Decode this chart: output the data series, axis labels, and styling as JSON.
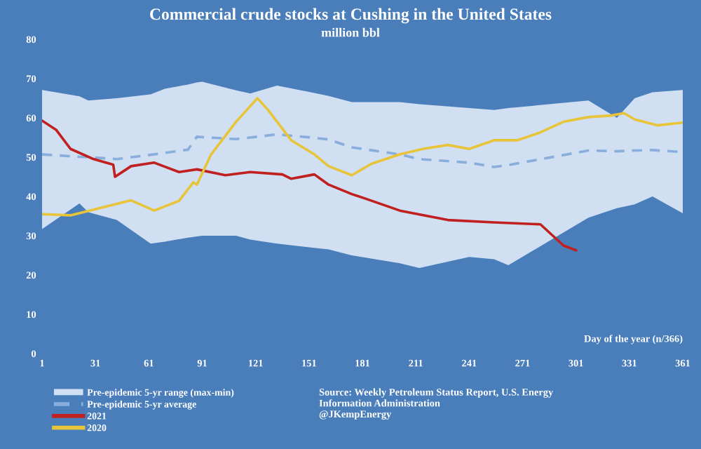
{
  "chart_data": {
    "type": "line",
    "title": "Commercial crude stocks at Cushing in the United States",
    "subtitle": "million bbl",
    "xlabel": "Day of the year (n/366)",
    "annotations": [
      "Source: Weekly Petroleum Status Report, U.S. Energy\nInformation Administration\n@JKempEnergy",
      "Pre-epidemic 5-yr range (max-min)"
    ],
    "xlim": [
      1,
      361
    ],
    "xticks": [
      1,
      31,
      61,
      91,
      121,
      151,
      181,
      211,
      241,
      271,
      301,
      331,
      361
    ],
    "ylim": [
      0,
      80
    ],
    "yticks": [
      0,
      10,
      20,
      30,
      40,
      50,
      60,
      70,
      80
    ],
    "grid": false,
    "legend": "bottom",
    "series": [
      {
        "name": "Pre-epidemic 5-yr average",
        "line_style": "dashed",
        "color": "#8aaedc",
        "x": [
          1,
          22,
          27,
          43,
          62,
          70,
          83,
          88,
          91,
          110,
          118,
          133,
          152,
          162,
          175,
          202,
          213,
          241,
          255,
          263,
          308,
          324,
          334,
          344,
          361
        ],
        "values": [
          50.7,
          50.1,
          50,
          49.5,
          50.6,
          51.1,
          51.9,
          55.2,
          55.1,
          54.6,
          55,
          55.8,
          55,
          54.5,
          52.5,
          50.7,
          49.5,
          48.6,
          47.5,
          48,
          51.7,
          51.5,
          51.7,
          51.8,
          51.3
        ],
        "lower": [
          31.7,
          38.2,
          36,
          34,
          28,
          28.5,
          29.5,
          29.8,
          30,
          30,
          29,
          28,
          27,
          26.5,
          25,
          23,
          21.8,
          24.6,
          24,
          22.5,
          34.6,
          37,
          38,
          40,
          35.7
        ],
        "upper": [
          67.1,
          65.5,
          64.4,
          65,
          66,
          67.4,
          68.5,
          69,
          69.2,
          67,
          66.2,
          68.2,
          66.5,
          65.6,
          64,
          64,
          63.5,
          62.5,
          62,
          62.5,
          64.4,
          60,
          65,
          66.5,
          67.1
        ]
      },
      {
        "name": "2021",
        "line_style": "solid",
        "color": "#c0201f",
        "x": [
          1,
          9,
          17,
          30,
          41,
          42,
          51,
          64,
          78,
          88,
          104,
          118,
          136,
          141,
          154,
          162,
          175,
          183,
          202,
          229,
          255,
          281,
          294,
          301
        ],
        "values": [
          59.3,
          56.9,
          52.1,
          49.5,
          48.1,
          45,
          47.7,
          48.6,
          46.2,
          46.9,
          45.4,
          46.2,
          45.6,
          44.5,
          45.6,
          43,
          40.6,
          39.4,
          36.4,
          34,
          33.4,
          32.9,
          27.5,
          26.3
        ]
      },
      {
        "name": "2020",
        "line_style": "solid",
        "color": "#e8c43a",
        "x": [
          1,
          17,
          51,
          64,
          78,
          86,
          88,
          96,
          110,
          122,
          128,
          141,
          154,
          162,
          175,
          186,
          202,
          215,
          229,
          241,
          255,
          268,
          281,
          294,
          308,
          321,
          328,
          334,
          347,
          361
        ],
        "values": [
          35.5,
          35.2,
          39,
          36.4,
          38.9,
          43.6,
          43,
          50.7,
          59,
          65,
          62,
          54.3,
          50.7,
          47.7,
          45.4,
          48.3,
          50.7,
          52.1,
          53.1,
          52.1,
          54.3,
          54.3,
          56.3,
          59,
          60.2,
          60.6,
          61.2,
          59.6,
          58.1,
          58.8
        ]
      }
    ]
  }
}
